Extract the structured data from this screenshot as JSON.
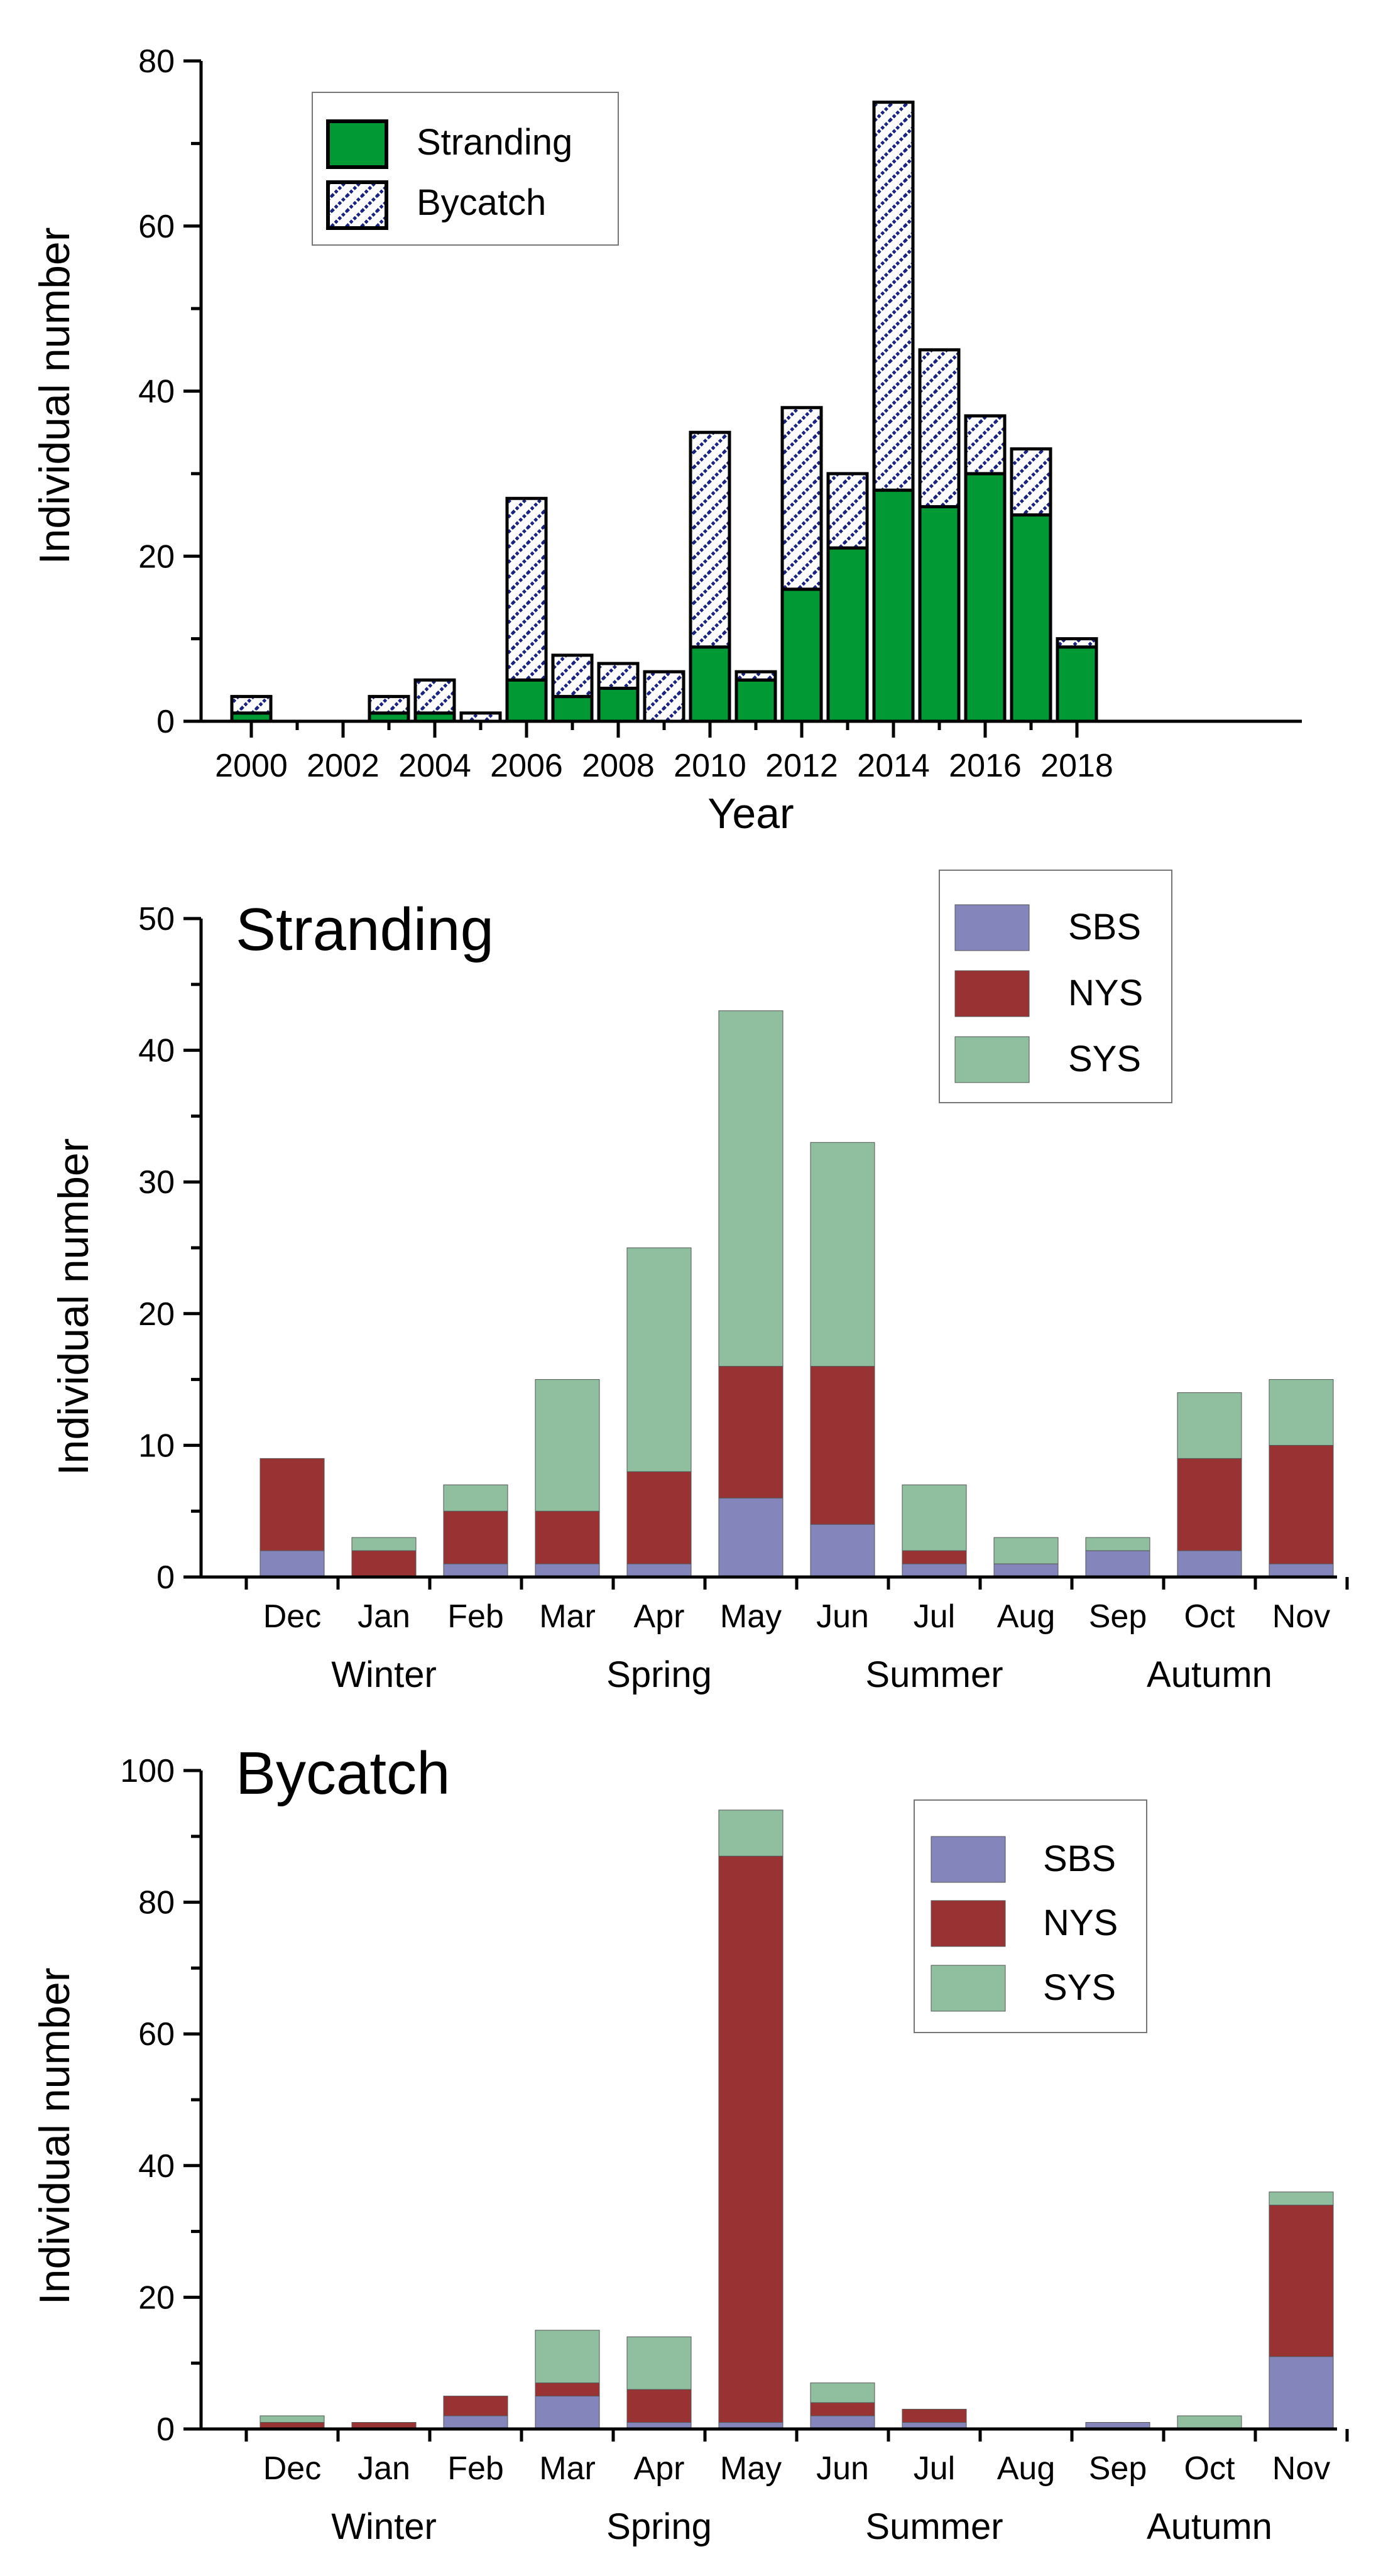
{
  "colors": {
    "stranding": "#009933",
    "bycatch_hatch": "#1a237e",
    "SBS": "#8486bb",
    "NYS": "#993333",
    "SYS": "#8fbf9f"
  },
  "chart_data": [
    {
      "type": "bar",
      "stacked": true,
      "title": "",
      "xlabel": "Year",
      "ylabel": "Individual number",
      "ylim": [
        0,
        80
      ],
      "yticks": [
        0,
        20,
        40,
        60,
        80
      ],
      "x": [
        2000,
        2001,
        2002,
        2003,
        2004,
        2005,
        2006,
        2007,
        2008,
        2009,
        2010,
        2011,
        2012,
        2013,
        2014,
        2015,
        2016,
        2017,
        2018
      ],
      "xtick_labels": [
        "2000",
        "2002",
        "2004",
        "2006",
        "2008",
        "2010",
        "2012",
        "2014",
        "2016",
        "2018"
      ],
      "series": [
        {
          "name": "Stranding",
          "values": [
            1,
            0,
            0,
            1,
            1,
            0,
            5,
            3,
            4,
            0,
            9,
            5,
            16,
            21,
            28,
            26,
            30,
            25,
            9
          ]
        },
        {
          "name": "Bycatch",
          "values": [
            2,
            0,
            0,
            2,
            4,
            1,
            22,
            5,
            3,
            6,
            26,
            1,
            22,
            9,
            47,
            19,
            7,
            8,
            1
          ]
        }
      ],
      "legend": {
        "position": "top-left",
        "entries": [
          "Stranding",
          "Bycatch"
        ]
      }
    },
    {
      "type": "bar",
      "stacked": true,
      "title": "Stranding",
      "xlabel": "",
      "ylabel": "Individual number",
      "ylim": [
        0,
        50
      ],
      "yticks": [
        0,
        10,
        20,
        30,
        40,
        50
      ],
      "categories": [
        "Dec",
        "Jan",
        "Feb",
        "Mar",
        "Apr",
        "May",
        "Jun",
        "Jul",
        "Aug",
        "Sep",
        "Oct",
        "Nov"
      ],
      "seasons": [
        "Winter",
        "Spring",
        "Summer",
        "Autumn"
      ],
      "series": [
        {
          "name": "SBS",
          "values": [
            2,
            0,
            1,
            1,
            1,
            6,
            4,
            1,
            1,
            2,
            2,
            1
          ]
        },
        {
          "name": "NYS",
          "values": [
            7,
            2,
            4,
            4,
            7,
            10,
            12,
            1,
            0,
            0,
            7,
            9
          ]
        },
        {
          "name": "SYS",
          "values": [
            0,
            1,
            2,
            10,
            17,
            27,
            17,
            5,
            2,
            1,
            5,
            5
          ]
        }
      ],
      "legend": {
        "position": "top-right",
        "entries": [
          "SBS",
          "NYS",
          "SYS"
        ]
      }
    },
    {
      "type": "bar",
      "stacked": true,
      "title": "Bycatch",
      "xlabel": "",
      "ylabel": "Individual number",
      "ylim": [
        0,
        100
      ],
      "yticks": [
        0,
        20,
        40,
        60,
        80,
        100
      ],
      "categories": [
        "Dec",
        "Jan",
        "Feb",
        "Mar",
        "Apr",
        "May",
        "Jun",
        "Jul",
        "Aug",
        "Sep",
        "Oct",
        "Nov"
      ],
      "seasons": [
        "Winter",
        "Spring",
        "Summer",
        "Autumn"
      ],
      "series": [
        {
          "name": "SBS",
          "values": [
            0,
            0,
            2,
            5,
            1,
            1,
            2,
            1,
            0,
            1,
            0,
            11
          ]
        },
        {
          "name": "NYS",
          "values": [
            1,
            1,
            3,
            2,
            5,
            86,
            2,
            2,
            0,
            0,
            0,
            23
          ]
        },
        {
          "name": "SYS",
          "values": [
            1,
            0,
            0,
            8,
            8,
            7,
            3,
            0,
            0,
            0,
            2,
            2
          ]
        }
      ],
      "legend": {
        "position": "top-right",
        "entries": [
          "SBS",
          "NYS",
          "SYS"
        ]
      }
    }
  ]
}
